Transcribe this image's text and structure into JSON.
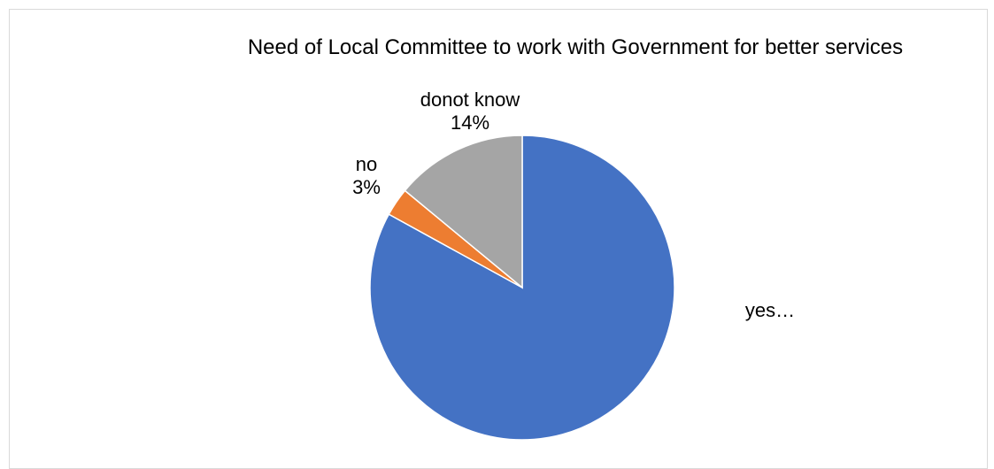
{
  "chart_data": {
    "type": "pie",
    "title": "Need of Local Committee to work with Government for better services",
    "slices": [
      {
        "category": "yes",
        "value": 83,
        "label_lines": [
          "yes…"
        ],
        "color": "#4472C4"
      },
      {
        "category": "no",
        "value": 3,
        "label_lines": [
          "no",
          "3%"
        ],
        "color": "#ED7D31"
      },
      {
        "category": "donot know",
        "value": 14,
        "label_lines": [
          "donot know",
          "14%"
        ],
        "color": "#A5A5A5"
      }
    ],
    "start_angle_deg": 0,
    "direction": "clockwise",
    "legend": "none"
  }
}
